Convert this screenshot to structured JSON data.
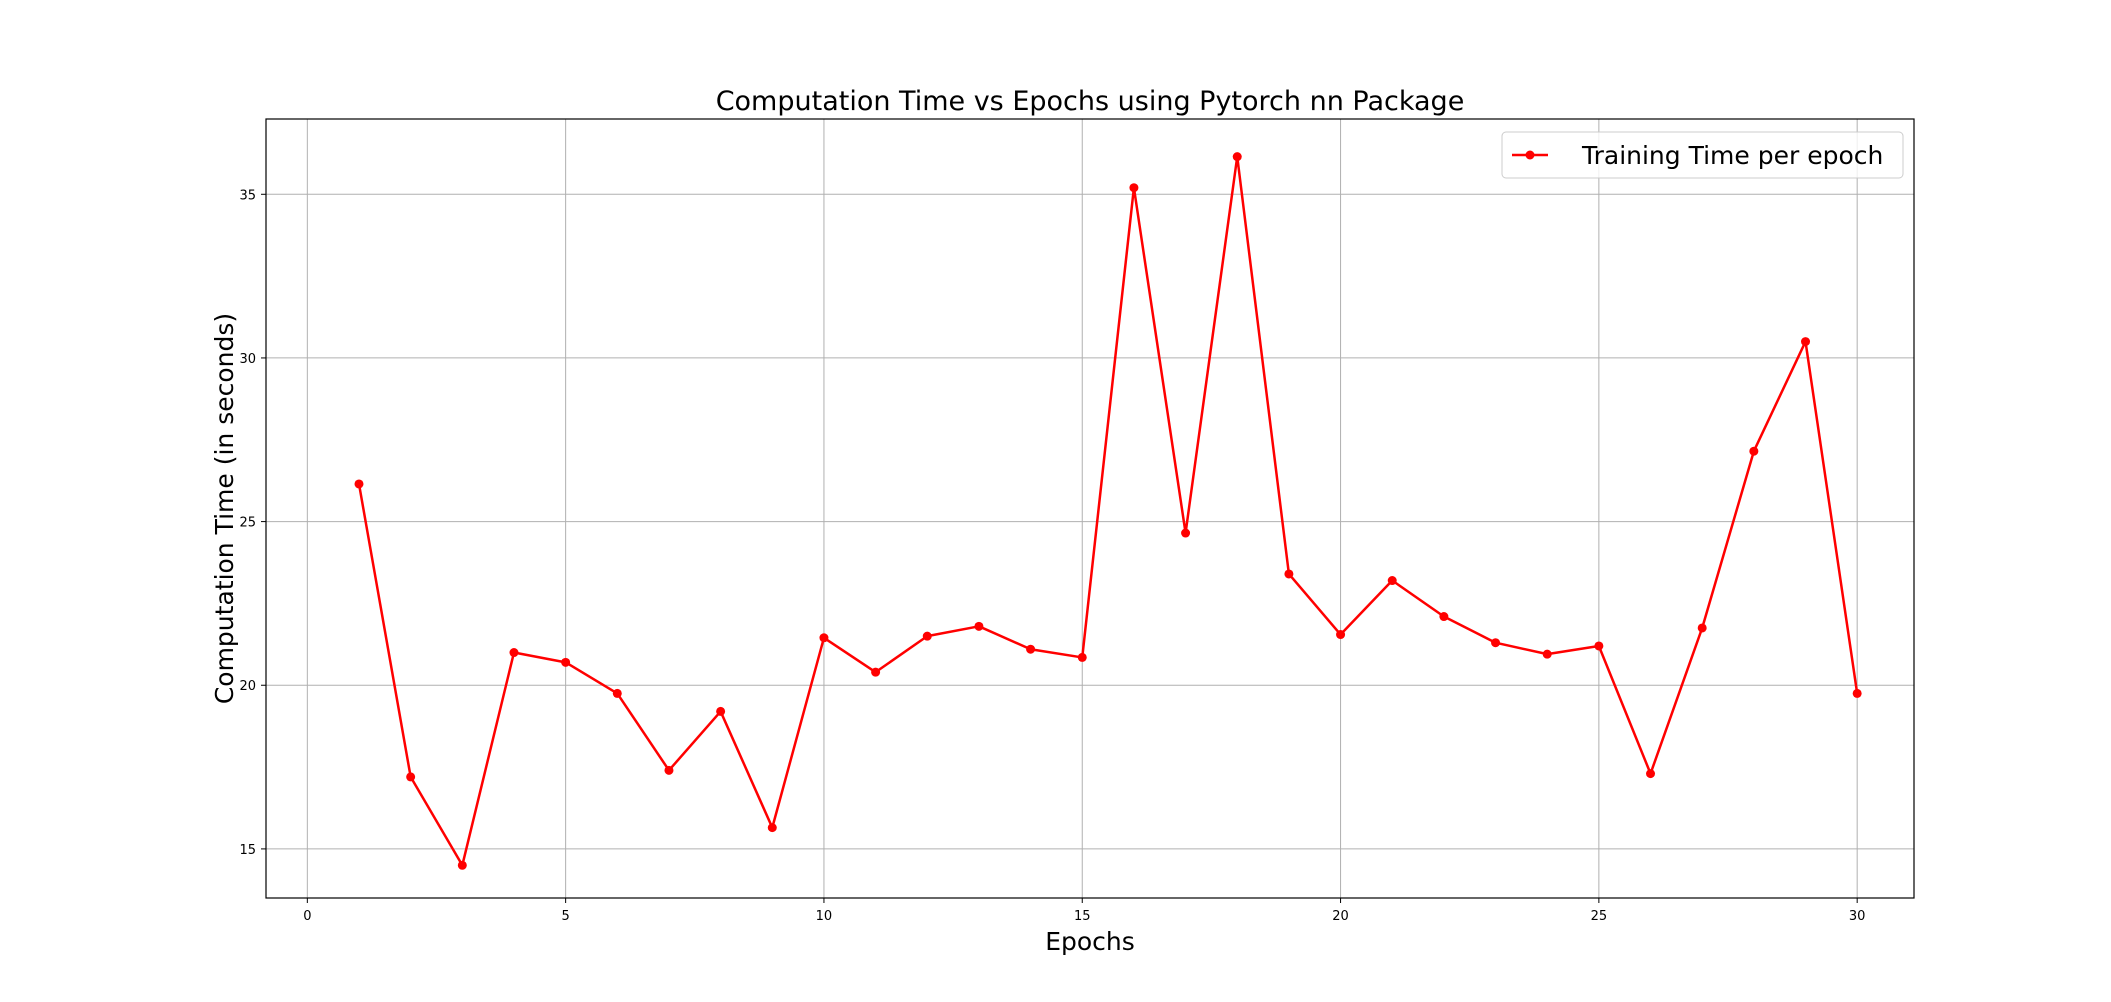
{
  "chart_data": {
    "type": "line",
    "title": "Computation Time vs Epochs using  Pytorch nn Package",
    "xlabel": "Epochs",
    "ylabel": "Computation Time (in seconds)",
    "xlim": [
      -0.8,
      31.1
    ],
    "ylim": [
      13.5,
      37.3
    ],
    "xticks": [
      0,
      5,
      10,
      15,
      20,
      25,
      30
    ],
    "yticks": [
      15,
      20,
      25,
      30,
      35
    ],
    "grid": true,
    "legend_position": "top-right",
    "series": [
      {
        "name": "Training Time per epoch",
        "color": "#ff0000",
        "marker": "circle",
        "x": [
          1,
          2,
          3,
          4,
          5,
          6,
          7,
          8,
          9,
          10,
          11,
          12,
          13,
          14,
          15,
          16,
          17,
          18,
          19,
          20,
          21,
          22,
          23,
          24,
          25,
          26,
          27,
          28,
          29,
          30
        ],
        "y": [
          26.15,
          17.2,
          14.5,
          21.0,
          20.7,
          19.75,
          17.4,
          19.2,
          15.65,
          21.45,
          20.4,
          21.5,
          21.8,
          21.1,
          20.85,
          35.2,
          24.65,
          36.15,
          23.4,
          21.55,
          23.2,
          22.1,
          21.3,
          20.95,
          21.2,
          17.3,
          21.75,
          27.15,
          30.5,
          19.75
        ]
      }
    ]
  }
}
